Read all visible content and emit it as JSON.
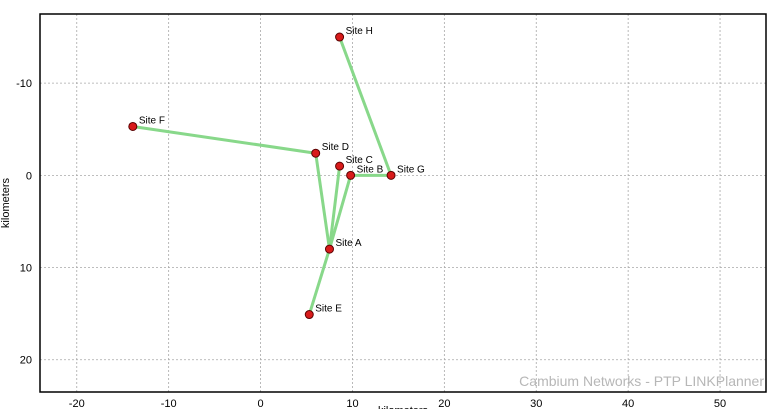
{
  "chart_data": {
    "type": "scatter",
    "title": "",
    "xlabel": "kilometers",
    "ylabel": "kilometers",
    "xlim": [
      -24,
      55
    ],
    "ylim": [
      23.5,
      -17.5
    ],
    "y_inverted": true,
    "grid": true,
    "x_ticks": [
      -20,
      -10,
      0,
      10,
      20,
      30,
      40,
      50
    ],
    "y_ticks": [
      -10,
      0,
      10,
      20
    ],
    "sites": [
      {
        "name": "Site A",
        "x": 7.5,
        "y": 8.0
      },
      {
        "name": "Site B",
        "x": 9.8,
        "y": 0.0
      },
      {
        "name": "Site C",
        "x": 8.6,
        "y": -1.0
      },
      {
        "name": "Site D",
        "x": 6.0,
        "y": -2.4
      },
      {
        "name": "Site E",
        "x": 5.3,
        "y": 15.1
      },
      {
        "name": "Site F",
        "x": -13.9,
        "y": -5.3
      },
      {
        "name": "Site G",
        "x": 14.2,
        "y": 0.0
      },
      {
        "name": "Site H",
        "x": 8.6,
        "y": -15.0
      }
    ],
    "links": [
      [
        "Site A",
        "Site D"
      ],
      [
        "Site A",
        "Site C"
      ],
      [
        "Site A",
        "Site B"
      ],
      [
        "Site A",
        "Site E"
      ],
      [
        "Site B",
        "Site G"
      ],
      [
        "Site D",
        "Site F"
      ],
      [
        "Site G",
        "Site H"
      ]
    ],
    "colors": {
      "link": "#88d88a",
      "site_fill": "#d81b1b",
      "site_stroke": "#5a0000",
      "grid": "#a8a8a8",
      "watermark": "#b7b7b7"
    }
  },
  "watermark": "Cambium Networks - PTP LINKPlanner"
}
